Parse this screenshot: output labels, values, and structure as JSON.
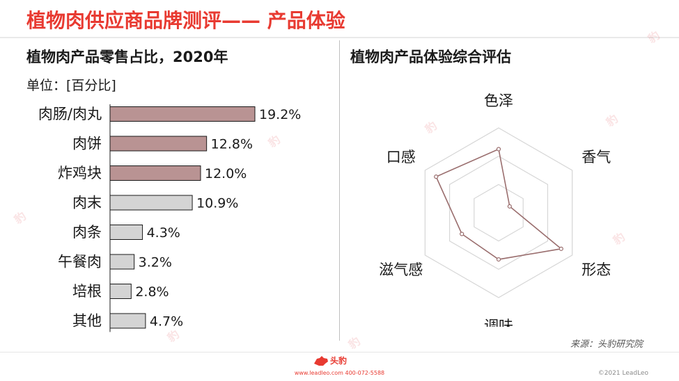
{
  "header": {
    "title": "植物肉供应商品牌测评—— 产品体验"
  },
  "left_panel": {
    "subtitle": "植物肉产品零售占比，2020年",
    "unit_label": "单位：[百分比]"
  },
  "right_panel": {
    "subtitle": "植物肉产品体验综合评估"
  },
  "source": "来源：头豹研究院",
  "footer": {
    "logo_text": "头豹",
    "contact": "www.leadleo.com   400-072-5588",
    "copyright": "©2021 LeadLeo"
  },
  "colors": {
    "title": "#e83a31",
    "highlight_bar": "#b99393",
    "gray_bar": "#d4d4d4",
    "radar_line": "#9a6e6e",
    "grid": "#d6d6d6"
  },
  "chart_data": [
    {
      "type": "bar",
      "orientation": "horizontal",
      "categories": [
        "肉肠/肉丸",
        "肉饼",
        "炸鸡块",
        "肉末",
        "肉条",
        "午餐肉",
        "培根",
        "其他"
      ],
      "values": [
        19.2,
        12.8,
        12.0,
        10.9,
        4.3,
        3.2,
        2.8,
        4.7
      ],
      "value_labels": [
        "19.2%",
        "12.8%",
        "12.0%",
        "10.9%",
        "4.3%",
        "3.2%",
        "2.8%",
        "4.7%"
      ],
      "highlighted": [
        true,
        true,
        true,
        false,
        false,
        false,
        false,
        false
      ],
      "xlim": [
        0,
        19.2
      ]
    },
    {
      "type": "radar",
      "axes": [
        "色泽",
        "香气",
        "形态",
        "调味",
        "滋气感",
        "口感"
      ],
      "values": [
        0.75,
        0.15,
        0.85,
        0.55,
        0.5,
        0.85
      ],
      "rings": 3,
      "range": [
        0,
        1
      ]
    }
  ]
}
